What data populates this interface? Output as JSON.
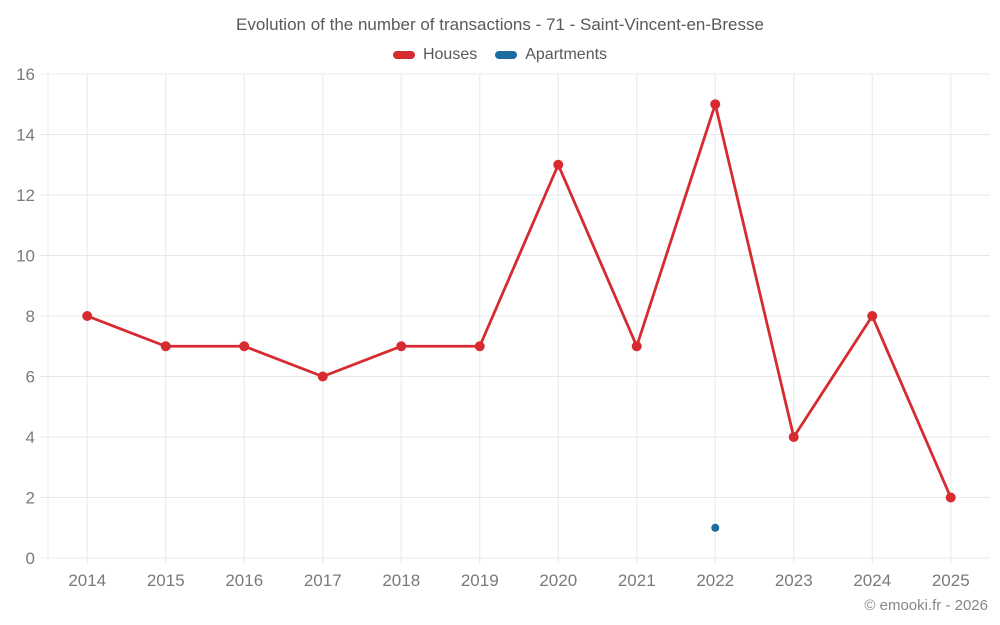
{
  "footer": {
    "credit": "© emooki.fr - 2026"
  },
  "chart_data": {
    "type": "line",
    "title": "Evolution of the number of transactions - 71 - Saint-Vincent-en-Bresse",
    "categories": [
      "2014",
      "2015",
      "2016",
      "2017",
      "2018",
      "2019",
      "2020",
      "2021",
      "2022",
      "2023",
      "2024",
      "2025"
    ],
    "series": [
      {
        "name": "Houses",
        "color": "#d62b30",
        "marker_radius": 5,
        "values": [
          8,
          7,
          7,
          6,
          7,
          7,
          13,
          7,
          15,
          4,
          8,
          2
        ]
      },
      {
        "name": "Apartments",
        "color": "#1a6d9e",
        "marker_radius": 4,
        "values": [
          null,
          null,
          null,
          null,
          null,
          null,
          null,
          null,
          1,
          null,
          null,
          null
        ]
      }
    ],
    "xlabel": "",
    "ylabel": "",
    "ylim": [
      0,
      16
    ],
    "ytick_step": 2,
    "grid": true,
    "legend_position": "top",
    "grid_color": "#e8e8e8",
    "tick_label_color": "#7a7a7a"
  }
}
